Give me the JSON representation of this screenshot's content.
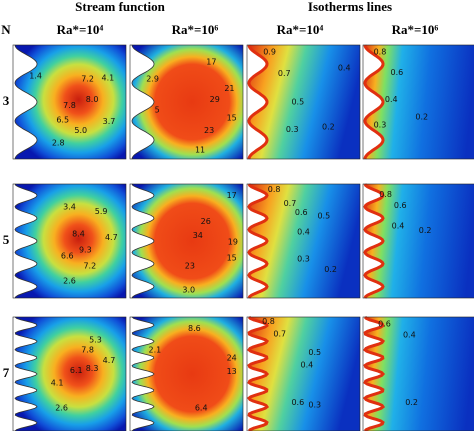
{
  "header": {
    "stream_title": "Stream function",
    "isotherm_title": "Isotherms lines",
    "row_title": "N",
    "columns": [
      "Ra*=10⁴",
      "Ra*=10⁶",
      "Ra*=10⁴",
      "Ra*=10⁶"
    ]
  },
  "rows": [
    {
      "label": "3",
      "panels": [
        {
          "labels": [
            "1.4",
            "7.2",
            "4.1",
            "7.8",
            "8.0",
            "6.5",
            "5.0",
            "3.7",
            "2.8"
          ]
        },
        {
          "labels": [
            "17",
            "2.9",
            "29",
            "21",
            "5",
            "15",
            "23",
            "11"
          ]
        },
        {
          "labels": [
            "0.9",
            "0.7",
            "0.4",
            "0.5",
            "0.3",
            "0.2"
          ]
        },
        {
          "labels": [
            "0.8",
            "0.6",
            "0.4",
            "0.3",
            "0.2"
          ]
        }
      ]
    },
    {
      "label": "5",
      "panels": [
        {
          "labels": [
            "3.4",
            "5.9",
            "8.4",
            "4.7",
            "9.3",
            "6.6",
            "7.2",
            "2.6"
          ]
        },
        {
          "labels": [
            "17",
            "26",
            "34",
            "19",
            "15",
            "23",
            "3.0"
          ]
        },
        {
          "labels": [
            "0.8",
            "0.7",
            "0.6",
            "0.5",
            "0.4",
            "0.3",
            "0.2"
          ]
        },
        {
          "labels": [
            "0.8",
            "0.6",
            "0.4",
            "0.2"
          ]
        }
      ]
    },
    {
      "label": "7",
      "panels": [
        {
          "labels": [
            "5.3",
            "7.8",
            "4.7",
            "8.3",
            "6.1",
            "4.1",
            "2.6"
          ]
        },
        {
          "labels": [
            "8.6",
            "24",
            "13",
            "2.1",
            "6.4"
          ]
        },
        {
          "labels": [
            "0.8",
            "0.7",
            "0.5",
            "0.4",
            "0.6",
            "0.3"
          ]
        },
        {
          "labels": [
            "0.6",
            "0.4",
            "0.2"
          ]
        }
      ]
    }
  ]
}
